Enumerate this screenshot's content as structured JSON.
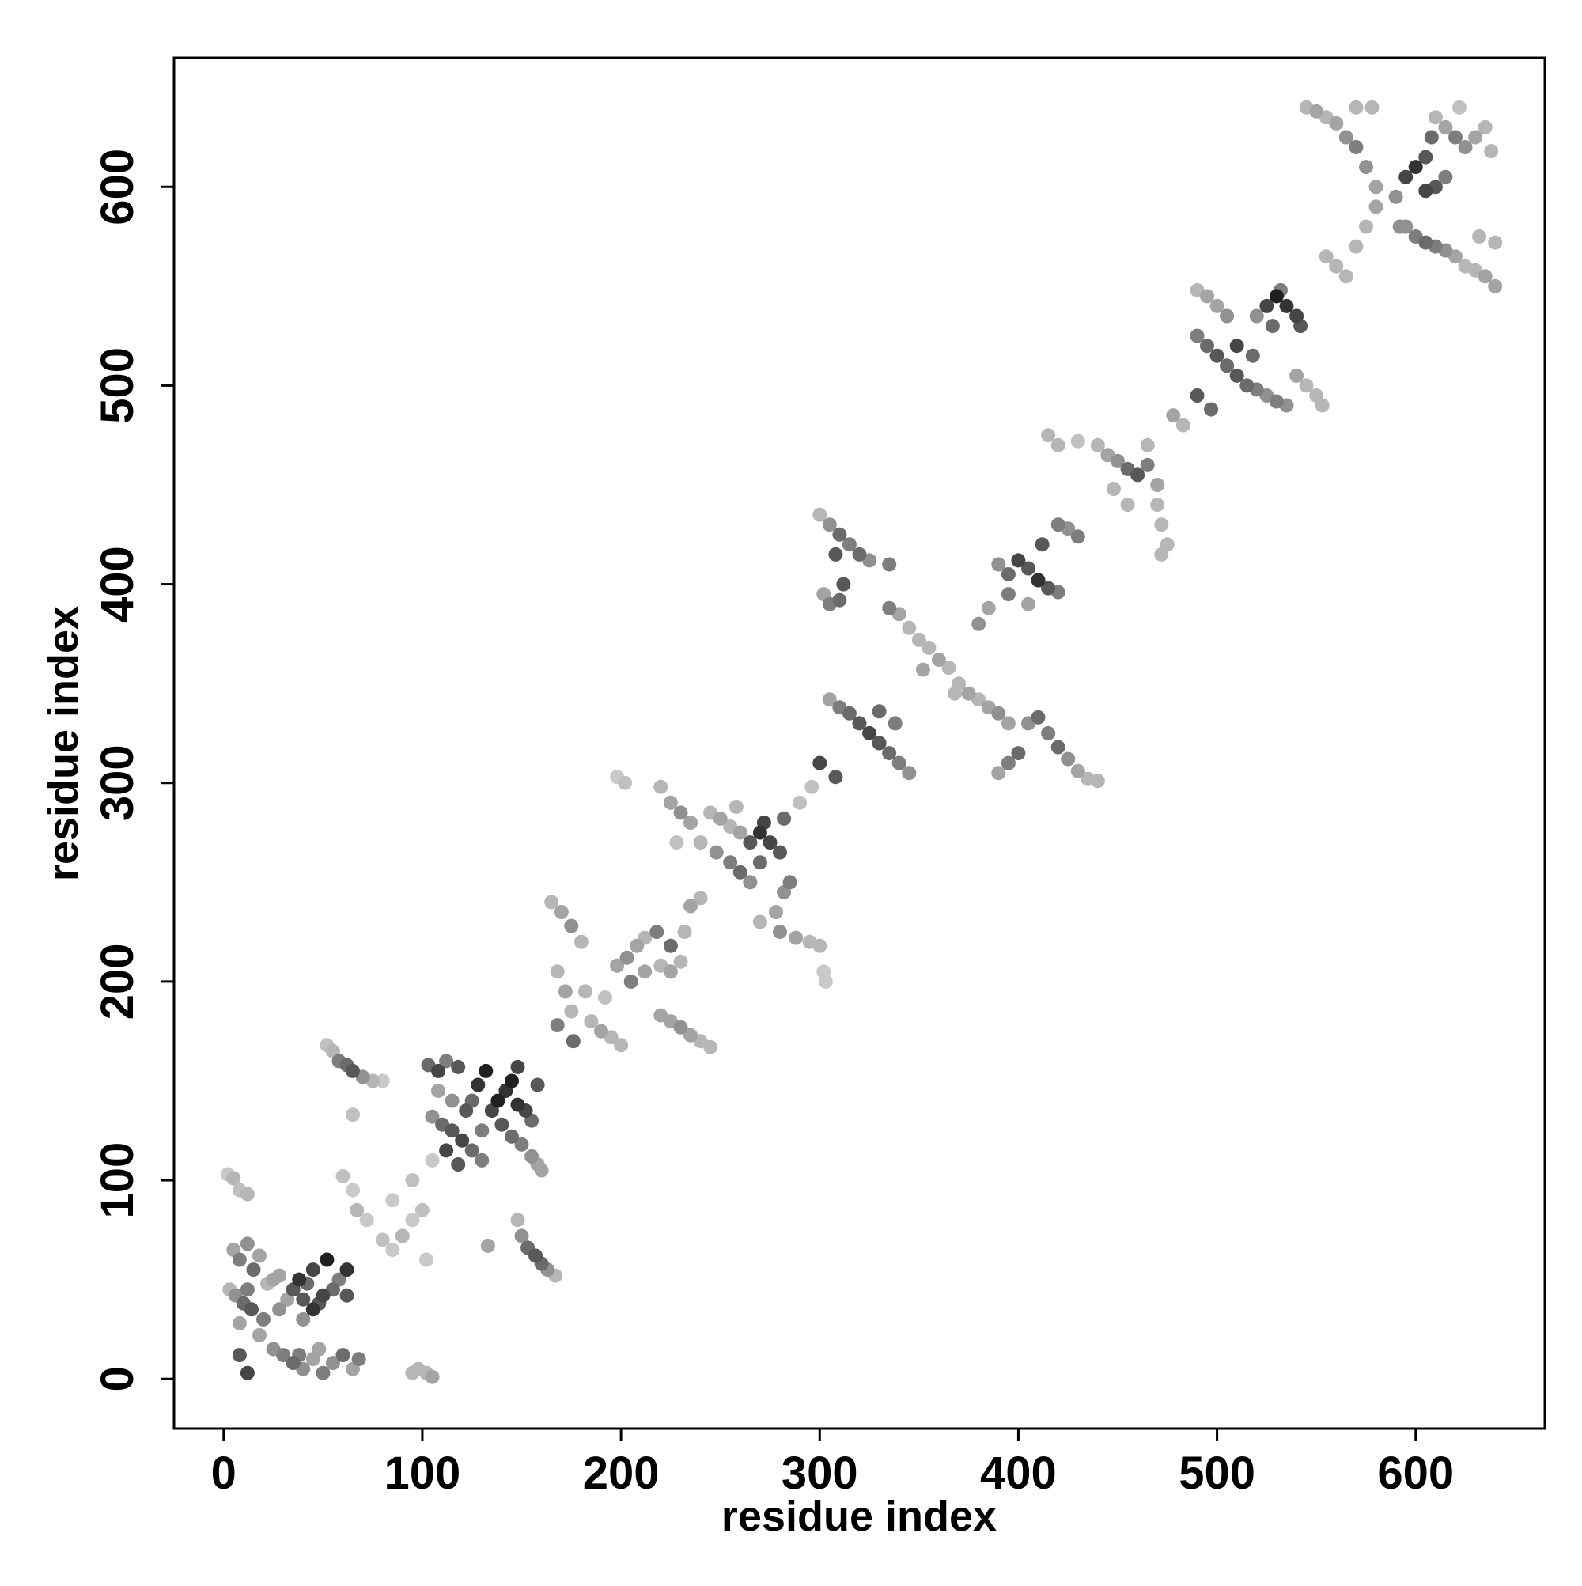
{
  "chart_data": {
    "type": "scatter",
    "title": "",
    "xlabel": "residue index",
    "ylabel": "residue index",
    "xlim": [
      -25,
      665
    ],
    "ylim": [
      -25,
      665
    ],
    "xticks": [
      0,
      100,
      200,
      300,
      400,
      500,
      600
    ],
    "yticks": [
      0,
      100,
      200,
      300,
      400,
      500,
      600
    ],
    "grid": false,
    "legend": "none",
    "color_scale": {
      "low": "#dcdcdc",
      "high": "#202020"
    },
    "points": [
      [
        2,
        103,
        0.1
      ],
      [
        5,
        101,
        0.2
      ],
      [
        8,
        95,
        0.15
      ],
      [
        12,
        93,
        0.2
      ],
      [
        5,
        65,
        0.3
      ],
      [
        8,
        60,
        0.5
      ],
      [
        12,
        68,
        0.4
      ],
      [
        15,
        55,
        0.6
      ],
      [
        18,
        62,
        0.3
      ],
      [
        6,
        42,
        0.4
      ],
      [
        10,
        38,
        0.6
      ],
      [
        14,
        35,
        0.7
      ],
      [
        20,
        30,
        0.5
      ],
      [
        8,
        28,
        0.3
      ],
      [
        22,
        48,
        0.2
      ],
      [
        25,
        50,
        0.3
      ],
      [
        28,
        35,
        0.4
      ],
      [
        3,
        45,
        0.2
      ],
      [
        12,
        45,
        0.5
      ],
      [
        18,
        22,
        0.3
      ],
      [
        25,
        15,
        0.4
      ],
      [
        30,
        12,
        0.5
      ],
      [
        35,
        8,
        0.6
      ],
      [
        40,
        5,
        0.4
      ],
      [
        45,
        10,
        0.3
      ],
      [
        50,
        3,
        0.5
      ],
      [
        55,
        8,
        0.4
      ],
      [
        60,
        12,
        0.6
      ],
      [
        65,
        5,
        0.3
      ],
      [
        68,
        10,
        0.5
      ],
      [
        48,
        15,
        0.3
      ],
      [
        38,
        12,
        0.5
      ],
      [
        8,
        12,
        0.7
      ],
      [
        12,
        3,
        0.8
      ],
      [
        35,
        45,
        0.7
      ],
      [
        38,
        50,
        0.9
      ],
      [
        42,
        48,
        0.6
      ],
      [
        45,
        55,
        0.8
      ],
      [
        40,
        40,
        0.7
      ],
      [
        45,
        35,
        0.9
      ],
      [
        50,
        42,
        0.8
      ],
      [
        55,
        45,
        0.6
      ],
      [
        58,
        50,
        0.5
      ],
      [
        62,
        42,
        0.7
      ],
      [
        62,
        55,
        0.9
      ],
      [
        52,
        60,
        1.0
      ],
      [
        48,
        38,
        0.7
      ],
      [
        40,
        30,
        0.4
      ],
      [
        32,
        40,
        0.3
      ],
      [
        28,
        52,
        0.3
      ],
      [
        55,
        165,
        0.2
      ],
      [
        58,
        160,
        0.5
      ],
      [
        62,
        158,
        0.6
      ],
      [
        65,
        155,
        0.7
      ],
      [
        70,
        152,
        0.4
      ],
      [
        75,
        150,
        0.2
      ],
      [
        80,
        150,
        0.1
      ],
      [
        52,
        168,
        0.15
      ],
      [
        60,
        102,
        0.15
      ],
      [
        65,
        95,
        0.1
      ],
      [
        67,
        85,
        0.2
      ],
      [
        72,
        80,
        0.1
      ],
      [
        80,
        70,
        0.15
      ],
      [
        85,
        65,
        0.1
      ],
      [
        90,
        72,
        0.2
      ],
      [
        95,
        80,
        0.1
      ],
      [
        100,
        85,
        0.15
      ],
      [
        102,
        60,
        0.1
      ],
      [
        85,
        90,
        0.1
      ],
      [
        95,
        100,
        0.15
      ],
      [
        105,
        110,
        0.1
      ],
      [
        65,
        133,
        0.15
      ],
      [
        98,
        5,
        0.2
      ],
      [
        102,
        3,
        0.2
      ],
      [
        105,
        1,
        0.3
      ],
      [
        95,
        3,
        0.2
      ],
      [
        103,
        158,
        0.6
      ],
      [
        108,
        155,
        0.8
      ],
      [
        112,
        160,
        0.5
      ],
      [
        118,
        157,
        0.7
      ],
      [
        105,
        132,
        0.4
      ],
      [
        110,
        128,
        0.6
      ],
      [
        115,
        125,
        0.7
      ],
      [
        120,
        120,
        0.8
      ],
      [
        125,
        115,
        0.6
      ],
      [
        130,
        110,
        0.5
      ],
      [
        112,
        115,
        0.8
      ],
      [
        118,
        108,
        0.7
      ],
      [
        135,
        135,
        0.8
      ],
      [
        138,
        140,
        1.0
      ],
      [
        142,
        145,
        0.9
      ],
      [
        145,
        150,
        1.0
      ],
      [
        148,
        138,
        0.9
      ],
      [
        152,
        135,
        0.8
      ],
      [
        155,
        130,
        0.6
      ],
      [
        128,
        148,
        0.9
      ],
      [
        132,
        155,
        1.0
      ],
      [
        140,
        128,
        0.7
      ],
      [
        145,
        122,
        0.6
      ],
      [
        150,
        118,
        0.5
      ],
      [
        155,
        112,
        0.4
      ],
      [
        158,
        108,
        0.3
      ],
      [
        160,
        105,
        0.3
      ],
      [
        148,
        157,
        0.8
      ],
      [
        158,
        148,
        0.7
      ],
      [
        122,
        135,
        0.7
      ],
      [
        125,
        140,
        0.6
      ],
      [
        115,
        140,
        0.4
      ],
      [
        108,
        145,
        0.3
      ],
      [
        130,
        125,
        0.5
      ],
      [
        148,
        80,
        0.2
      ],
      [
        150,
        72,
        0.4
      ],
      [
        153,
        66,
        0.6
      ],
      [
        157,
        62,
        0.7
      ],
      [
        160,
        58,
        0.6
      ],
      [
        163,
        55,
        0.4
      ],
      [
        167,
        52,
        0.2
      ],
      [
        133,
        67,
        0.3
      ],
      [
        165,
        240,
        0.2
      ],
      [
        170,
        235,
        0.3
      ],
      [
        175,
        228,
        0.4
      ],
      [
        180,
        220,
        0.2
      ],
      [
        168,
        205,
        0.2
      ],
      [
        172,
        195,
        0.3
      ],
      [
        175,
        185,
        0.2
      ],
      [
        185,
        180,
        0.2
      ],
      [
        190,
        175,
        0.3
      ],
      [
        195,
        172,
        0.2
      ],
      [
        200,
        168,
        0.2
      ],
      [
        176,
        170,
        0.6
      ],
      [
        168,
        178,
        0.5
      ],
      [
        182,
        195,
        0.2
      ],
      [
        192,
        192,
        0.15
      ],
      [
        198,
        208,
        0.3
      ],
      [
        203,
        212,
        0.4
      ],
      [
        208,
        218,
        0.3
      ],
      [
        212,
        222,
        0.2
      ],
      [
        205,
        200,
        0.5
      ],
      [
        212,
        205,
        0.3
      ],
      [
        220,
        208,
        0.2
      ],
      [
        225,
        205,
        0.3
      ],
      [
        230,
        210,
        0.2
      ],
      [
        218,
        225,
        0.5
      ],
      [
        225,
        218,
        0.6
      ],
      [
        235,
        238,
        0.3
      ],
      [
        240,
        242,
        0.2
      ],
      [
        232,
        225,
        0.2
      ],
      [
        220,
        183,
        0.3
      ],
      [
        225,
        180,
        0.3
      ],
      [
        230,
        177,
        0.4
      ],
      [
        235,
        173,
        0.3
      ],
      [
        240,
        170,
        0.2
      ],
      [
        245,
        167,
        0.2
      ],
      [
        220,
        298,
        0.2
      ],
      [
        225,
        290,
        0.3
      ],
      [
        230,
        285,
        0.4
      ],
      [
        235,
        280,
        0.3
      ],
      [
        245,
        285,
        0.2
      ],
      [
        250,
        282,
        0.3
      ],
      [
        255,
        278,
        0.2
      ],
      [
        240,
        270,
        0.2
      ],
      [
        228,
        270,
        0.15
      ],
      [
        198,
        303,
        0.1
      ],
      [
        202,
        300,
        0.15
      ],
      [
        248,
        265,
        0.4
      ],
      [
        255,
        260,
        0.5
      ],
      [
        260,
        255,
        0.6
      ],
      [
        265,
        250,
        0.4
      ],
      [
        265,
        270,
        0.7
      ],
      [
        270,
        275,
        0.9
      ],
      [
        275,
        270,
        0.8
      ],
      [
        280,
        265,
        0.7
      ],
      [
        270,
        260,
        0.6
      ],
      [
        272,
        280,
        0.8
      ],
      [
        282,
        282,
        0.6
      ],
      [
        260,
        275,
        0.3
      ],
      [
        258,
        288,
        0.2
      ],
      [
        270,
        230,
        0.2
      ],
      [
        278,
        235,
        0.3
      ],
      [
        282,
        245,
        0.4
      ],
      [
        285,
        250,
        0.5
      ],
      [
        280,
        225,
        0.4
      ],
      [
        288,
        222,
        0.3
      ],
      [
        295,
        220,
        0.2
      ],
      [
        300,
        218,
        0.2
      ],
      [
        302,
        205,
        0.1
      ],
      [
        303,
        200,
        0.1
      ],
      [
        290,
        290,
        0.15
      ],
      [
        296,
        298,
        0.15
      ],
      [
        300,
        435,
        0.2
      ],
      [
        305,
        430,
        0.4
      ],
      [
        310,
        425,
        0.6
      ],
      [
        315,
        420,
        0.5
      ],
      [
        320,
        415,
        0.6
      ],
      [
        325,
        412,
        0.4
      ],
      [
        335,
        410,
        0.5
      ],
      [
        302,
        395,
        0.3
      ],
      [
        305,
        390,
        0.5
      ],
      [
        310,
        392,
        0.6
      ],
      [
        312,
        400,
        0.7
      ],
      [
        308,
        415,
        0.7
      ],
      [
        335,
        388,
        0.5
      ],
      [
        340,
        385,
        0.3
      ],
      [
        345,
        378,
        0.2
      ],
      [
        350,
        372,
        0.2
      ],
      [
        355,
        368,
        0.2
      ],
      [
        360,
        362,
        0.3
      ],
      [
        365,
        358,
        0.2
      ],
      [
        370,
        350,
        0.2
      ],
      [
        375,
        345,
        0.3
      ],
      [
        380,
        342,
        0.2
      ],
      [
        385,
        338,
        0.3
      ],
      [
        390,
        335,
        0.4
      ],
      [
        395,
        330,
        0.3
      ],
      [
        352,
        357,
        0.3
      ],
      [
        368,
        345,
        0.2
      ],
      [
        305,
        342,
        0.3
      ],
      [
        310,
        338,
        0.5
      ],
      [
        315,
        335,
        0.6
      ],
      [
        320,
        330,
        0.7
      ],
      [
        325,
        325,
        0.8
      ],
      [
        330,
        320,
        0.7
      ],
      [
        335,
        315,
        0.6
      ],
      [
        340,
        310,
        0.5
      ],
      [
        345,
        305,
        0.4
      ],
      [
        300,
        310,
        0.8
      ],
      [
        308,
        303,
        0.7
      ],
      [
        330,
        336,
        0.6
      ],
      [
        338,
        330,
        0.5
      ],
      [
        390,
        305,
        0.3
      ],
      [
        395,
        310,
        0.5
      ],
      [
        400,
        315,
        0.6
      ],
      [
        405,
        330,
        0.4
      ],
      [
        410,
        333,
        0.6
      ],
      [
        415,
        325,
        0.5
      ],
      [
        420,
        318,
        0.6
      ],
      [
        425,
        312,
        0.4
      ],
      [
        430,
        306,
        0.3
      ],
      [
        435,
        302,
        0.2
      ],
      [
        440,
        301,
        0.2
      ],
      [
        385,
        388,
        0.3
      ],
      [
        380,
        380,
        0.4
      ],
      [
        390,
        410,
        0.4
      ],
      [
        395,
        405,
        0.6
      ],
      [
        400,
        412,
        0.8
      ],
      [
        405,
        408,
        0.7
      ],
      [
        410,
        402,
        0.9
      ],
      [
        415,
        398,
        0.7
      ],
      [
        420,
        396,
        0.5
      ],
      [
        395,
        395,
        0.5
      ],
      [
        412,
        420,
        0.7
      ],
      [
        420,
        430,
        0.5
      ],
      [
        425,
        428,
        0.4
      ],
      [
        430,
        424,
        0.5
      ],
      [
        405,
        390,
        0.3
      ],
      [
        415,
        475,
        0.2
      ],
      [
        420,
        470,
        0.2
      ],
      [
        430,
        472,
        0.15
      ],
      [
        440,
        470,
        0.2
      ],
      [
        445,
        465,
        0.3
      ],
      [
        450,
        462,
        0.4
      ],
      [
        455,
        458,
        0.6
      ],
      [
        460,
        455,
        0.7
      ],
      [
        465,
        460,
        0.5
      ],
      [
        470,
        450,
        0.3
      ],
      [
        465,
        470,
        0.2
      ],
      [
        470,
        440,
        0.2
      ],
      [
        472,
        430,
        0.2
      ],
      [
        475,
        420,
        0.2
      ],
      [
        472,
        415,
        0.2
      ],
      [
        448,
        448,
        0.2
      ],
      [
        455,
        440,
        0.2
      ],
      [
        478,
        485,
        0.3
      ],
      [
        483,
        480,
        0.2
      ],
      [
        490,
        495,
        0.7
      ],
      [
        497,
        488,
        0.6
      ],
      [
        490,
        548,
        0.2
      ],
      [
        495,
        545,
        0.3
      ],
      [
        500,
        540,
        0.3
      ],
      [
        505,
        535,
        0.4
      ],
      [
        490,
        525,
        0.5
      ],
      [
        495,
        520,
        0.6
      ],
      [
        500,
        515,
        0.7
      ],
      [
        505,
        510,
        0.6
      ],
      [
        510,
        505,
        0.7
      ],
      [
        515,
        500,
        0.6
      ],
      [
        520,
        498,
        0.5
      ],
      [
        525,
        495,
        0.4
      ],
      [
        530,
        492,
        0.5
      ],
      [
        535,
        490,
        0.4
      ],
      [
        510,
        520,
        0.8
      ],
      [
        518,
        515,
        0.6
      ],
      [
        525,
        540,
        0.8
      ],
      [
        530,
        545,
        1.0
      ],
      [
        535,
        540,
        0.9
      ],
      [
        540,
        535,
        0.8
      ],
      [
        542,
        530,
        0.7
      ],
      [
        528,
        530,
        0.6
      ],
      [
        532,
        548,
        0.5
      ],
      [
        520,
        535,
        0.4
      ],
      [
        540,
        505,
        0.3
      ],
      [
        545,
        500,
        0.2
      ],
      [
        550,
        495,
        0.2
      ],
      [
        553,
        490,
        0.2
      ],
      [
        545,
        640,
        0.2
      ],
      [
        550,
        638,
        0.3
      ],
      [
        555,
        635,
        0.2
      ],
      [
        560,
        632,
        0.3
      ],
      [
        565,
        625,
        0.4
      ],
      [
        570,
        620,
        0.5
      ],
      [
        575,
        610,
        0.4
      ],
      [
        580,
        600,
        0.3
      ],
      [
        570,
        640,
        0.2
      ],
      [
        578,
        640,
        0.2
      ],
      [
        555,
        565,
        0.2
      ],
      [
        560,
        560,
        0.2
      ],
      [
        565,
        555,
        0.2
      ],
      [
        570,
        570,
        0.2
      ],
      [
        575,
        580,
        0.2
      ],
      [
        580,
        590,
        0.3
      ],
      [
        590,
        595,
        0.4
      ],
      [
        595,
        605,
        0.8
      ],
      [
        600,
        610,
        0.9
      ],
      [
        605,
        598,
        0.8
      ],
      [
        610,
        600,
        0.7
      ],
      [
        615,
        605,
        0.5
      ],
      [
        605,
        615,
        0.7
      ],
      [
        592,
        580,
        0.4
      ],
      [
        595,
        580,
        0.4
      ],
      [
        600,
        575,
        0.5
      ],
      [
        605,
        572,
        0.6
      ],
      [
        610,
        570,
        0.5
      ],
      [
        615,
        568,
        0.4
      ],
      [
        620,
        565,
        0.3
      ],
      [
        625,
        560,
        0.2
      ],
      [
        630,
        558,
        0.2
      ],
      [
        635,
        555,
        0.3
      ],
      [
        640,
        550,
        0.3
      ],
      [
        640,
        572,
        0.2
      ],
      [
        632,
        575,
        0.2
      ],
      [
        610,
        635,
        0.2
      ],
      [
        615,
        630,
        0.3
      ],
      [
        620,
        625,
        0.5
      ],
      [
        625,
        620,
        0.4
      ],
      [
        630,
        625,
        0.3
      ],
      [
        635,
        630,
        0.2
      ],
      [
        638,
        618,
        0.2
      ],
      [
        608,
        625,
        0.6
      ],
      [
        622,
        640,
        0.15
      ]
    ]
  }
}
